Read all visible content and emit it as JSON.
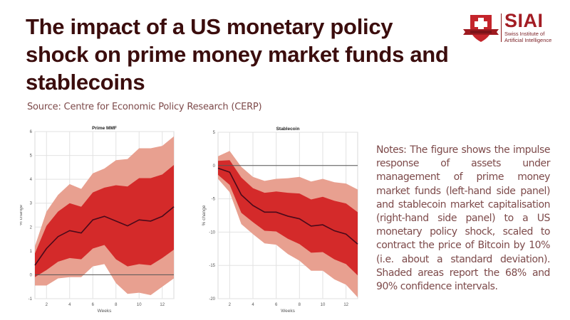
{
  "header": {
    "title": "The impact of a US monetary policy shock on prime money market funds and stablecoins",
    "source": "Source: Centre for Economic Policy Research (CERP)"
  },
  "logo": {
    "brand": "SIAI",
    "subtitle_line1": "Swiss Institute of",
    "subtitle_line2": "Artificial Intelligence",
    "icon": "shield-cross-icon",
    "brand_color": "#a31d24"
  },
  "notes": "Notes: The figure shows the impulse response of assets under management of prime money market funds (left-hand side panel) and stablecoin market capitalisation (right-hand side panel) to a US monetary policy shock, scaled to contract the price of Bitcoin by 10% (i.e. about a standard deviation). Shaded areas report the 68% and 90% confidence intervals.",
  "colors": {
    "title": "#3b0d0d",
    "band90": "#e8a090",
    "band68": "#d42a2a",
    "median": "#4a0a1a",
    "zero_line": "#555555"
  },
  "chart_data": [
    {
      "type": "area",
      "title": "Prime MMF",
      "xlabel": "Weeks",
      "ylabel": "% change",
      "xlim": [
        1,
        13
      ],
      "ylim": [
        -1,
        6
      ],
      "xticks": [
        2,
        4,
        6,
        8,
        10,
        12
      ],
      "yticks": [
        -1,
        0,
        1,
        2,
        3,
        4,
        5,
        6
      ],
      "grid": true,
      "x": [
        1,
        2,
        3,
        4,
        5,
        6,
        7,
        8,
        9,
        10,
        11,
        12,
        13
      ],
      "series": [
        {
          "name": "median",
          "values": [
            0.4,
            1.1,
            1.6,
            1.85,
            1.75,
            2.3,
            2.45,
            2.25,
            2.05,
            2.3,
            2.25,
            2.45,
            2.85
          ]
        },
        {
          "name": "68% lower",
          "values": [
            -0.1,
            0.2,
            0.55,
            0.7,
            0.65,
            1.1,
            1.25,
            0.65,
            0.35,
            0.45,
            0.4,
            0.7,
            1.05
          ]
        },
        {
          "name": "68% upper",
          "values": [
            0.9,
            2.05,
            2.65,
            3.0,
            2.85,
            3.45,
            3.65,
            3.75,
            3.7,
            4.05,
            4.05,
            4.2,
            4.6
          ]
        },
        {
          "name": "90% lower",
          "values": [
            -0.45,
            -0.45,
            -0.15,
            -0.1,
            -0.1,
            0.35,
            0.45,
            -0.35,
            -0.8,
            -0.75,
            -0.85,
            -0.5,
            -0.15
          ]
        },
        {
          "name": "90% upper",
          "values": [
            1.2,
            2.65,
            3.35,
            3.8,
            3.6,
            4.25,
            4.45,
            4.8,
            4.85,
            5.3,
            5.3,
            5.4,
            5.8
          ]
        }
      ]
    },
    {
      "type": "area",
      "title": "Stablecoin",
      "xlabel": "Weeks",
      "ylabel": "% change",
      "xlim": [
        1,
        13
      ],
      "ylim": [
        -20,
        5
      ],
      "xticks": [
        2,
        4,
        6,
        8,
        10,
        12
      ],
      "yticks": [
        -20,
        -15,
        -10,
        -5,
        0,
        5
      ],
      "grid": true,
      "x": [
        1,
        2,
        3,
        4,
        5,
        6,
        7,
        8,
        9,
        10,
        11,
        12,
        13
      ],
      "series": [
        {
          "name": "median",
          "values": [
            -0.4,
            -1.0,
            -4.4,
            -6.0,
            -7.0,
            -7.0,
            -7.6,
            -8.0,
            -9.1,
            -8.9,
            -9.8,
            -10.3,
            -11.8
          ]
        },
        {
          "name": "68% lower",
          "values": [
            -1.4,
            -2.9,
            -7.1,
            -8.5,
            -9.8,
            -9.9,
            -11.0,
            -11.8,
            -13.1,
            -13.0,
            -14.1,
            -14.8,
            -16.5
          ]
        },
        {
          "name": "68% upper",
          "values": [
            0.7,
            0.8,
            -1.8,
            -3.4,
            -4.1,
            -3.9,
            -4.1,
            -4.2,
            -5.1,
            -4.7,
            -5.3,
            -5.7,
            -7.0
          ]
        },
        {
          "name": "90% lower",
          "values": [
            -2.0,
            -4.0,
            -8.8,
            -10.3,
            -11.7,
            -11.9,
            -13.3,
            -14.3,
            -15.8,
            -15.8,
            -17.1,
            -17.9,
            -19.8
          ]
        },
        {
          "name": "90% upper",
          "values": [
            1.4,
            2.2,
            -0.2,
            -1.7,
            -2.3,
            -2.0,
            -1.9,
            -1.7,
            -2.4,
            -2.0,
            -2.5,
            -2.7,
            -3.6
          ]
        }
      ]
    }
  ]
}
